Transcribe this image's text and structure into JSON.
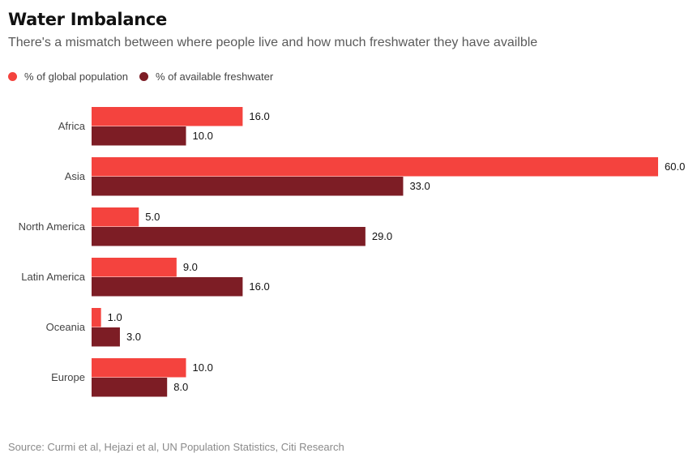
{
  "header": {
    "title": "Water Imbalance",
    "subtitle": "There's a mismatch between where people live and how much freshwater they have availble"
  },
  "legend": {
    "items": [
      {
        "label": "% of global population",
        "color": "#f4433e"
      },
      {
        "label": "% of available freshwater",
        "color": "#7d1d25"
      }
    ]
  },
  "footer": {
    "source": "Source: Curmi et al, Hejazi et al, UN Population Statistics, Citi Research"
  },
  "chart_data": {
    "type": "bar",
    "orientation": "horizontal",
    "title": "Water Imbalance",
    "subtitle": "There's a mismatch between where people live and how much freshwater they have availble",
    "xlabel": "",
    "ylabel": "",
    "categories": [
      "Africa",
      "Asia",
      "North America",
      "Latin America",
      "Oceania",
      "Europe"
    ],
    "series": [
      {
        "name": "% of global population",
        "color": "#f4433e",
        "values": [
          16.0,
          60.0,
          5.0,
          9.0,
          1.0,
          10.0
        ]
      },
      {
        "name": "% of available freshwater",
        "color": "#7d1d25",
        "values": [
          10.0,
          33.0,
          29.0,
          16.0,
          3.0,
          8.0
        ]
      }
    ],
    "xlim": [
      0,
      60
    ],
    "grid": false,
    "legend_position": "top-left",
    "data_labels": true
  }
}
